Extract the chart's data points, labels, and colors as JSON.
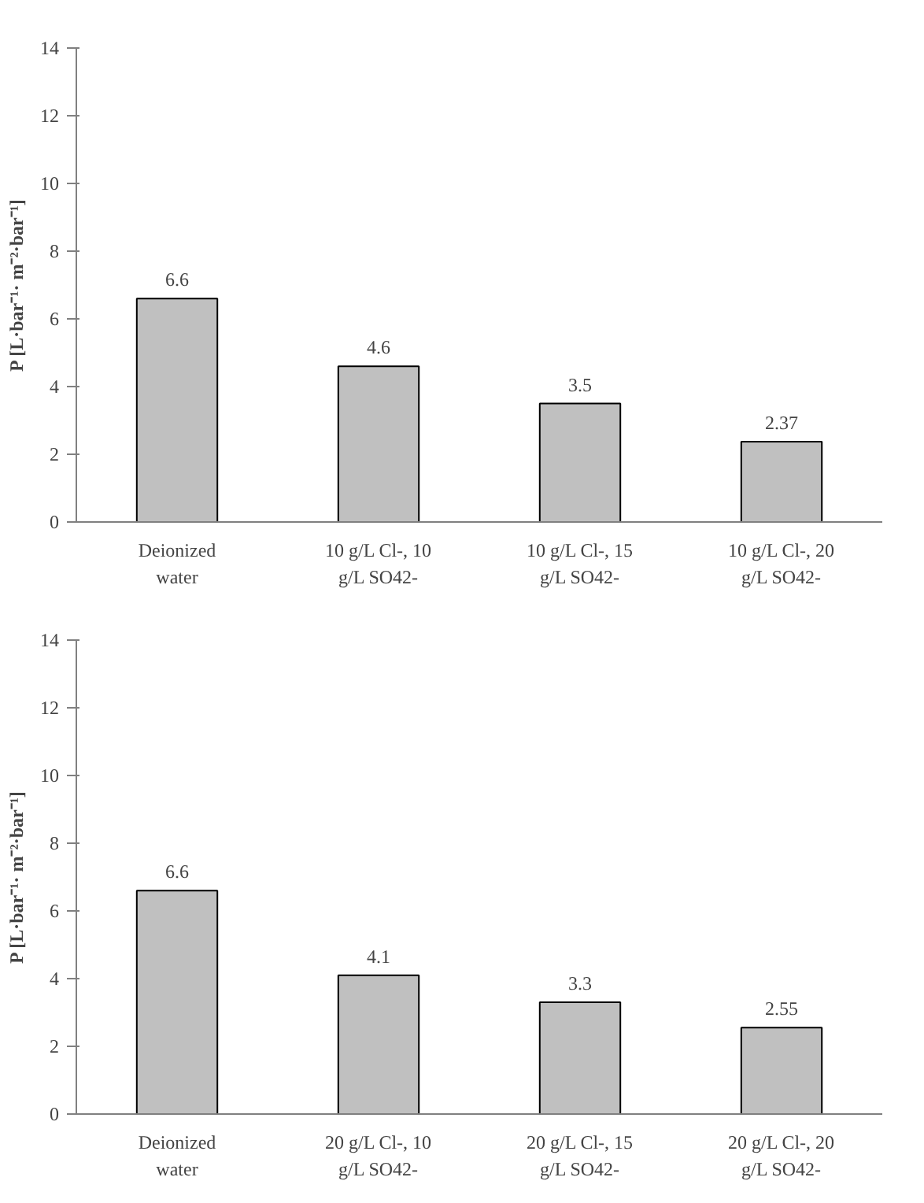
{
  "chart_data": [
    {
      "type": "bar",
      "categories": [
        "Deionized water",
        "10 g/L Cl-, 10 g/L SO42-",
        "10 g/L Cl-, 15 g/L SO42-",
        "10 g/L Cl-, 20 g/L SO42-"
      ],
      "values": [
        6.6,
        4.6,
        3.5,
        2.37
      ],
      "color": "#c0c0c0",
      "ylabel": "P [L·bar⁻¹· m⁻²·bar⁻¹]",
      "ylim": [
        0,
        14
      ],
      "yticks": [
        0,
        2,
        4,
        6,
        8,
        10,
        12,
        14
      ],
      "data_labels": true,
      "grid": false
    },
    {
      "type": "bar",
      "categories": [
        "Deionized water",
        "20 g/L Cl-, 10 g/L SO42-",
        "20 g/L Cl-, 15 g/L SO42-",
        "20 g/L Cl-, 20 g/L SO42-"
      ],
      "values": [
        6.6,
        4.1,
        3.3,
        2.55
      ],
      "color": "#c0c0c0",
      "ylabel": "P [L·bar⁻¹· m⁻²·bar⁻¹]",
      "ylim": [
        0,
        14
      ],
      "yticks": [
        0,
        2,
        4,
        6,
        8,
        10,
        12,
        14
      ],
      "data_labels": true,
      "grid": false
    }
  ]
}
